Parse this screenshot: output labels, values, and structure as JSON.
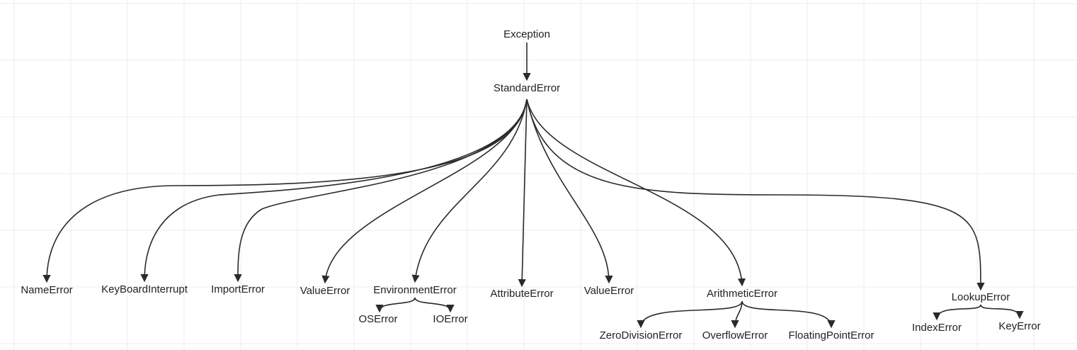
{
  "nodes": [
    {
      "label": "Exception"
    },
    {
      "label": "StandardError"
    },
    {
      "label": "NameError"
    },
    {
      "label": "KeyBoardInterrupt"
    },
    {
      "label": "ImportError"
    },
    {
      "label": "ValueError"
    },
    {
      "label": "EnvironmentError"
    },
    {
      "label": "AttributeError"
    },
    {
      "label": "ValueError"
    },
    {
      "label": "ArithmeticError"
    },
    {
      "label": "LookupError"
    },
    {
      "label": "OSError"
    },
    {
      "label": "IOError"
    },
    {
      "label": "ZeroDivisionError"
    },
    {
      "label": "OverflowError"
    },
    {
      "label": "FloatingPointError"
    },
    {
      "label": "IndexError"
    },
    {
      "label": "KeyError"
    }
  ]
}
